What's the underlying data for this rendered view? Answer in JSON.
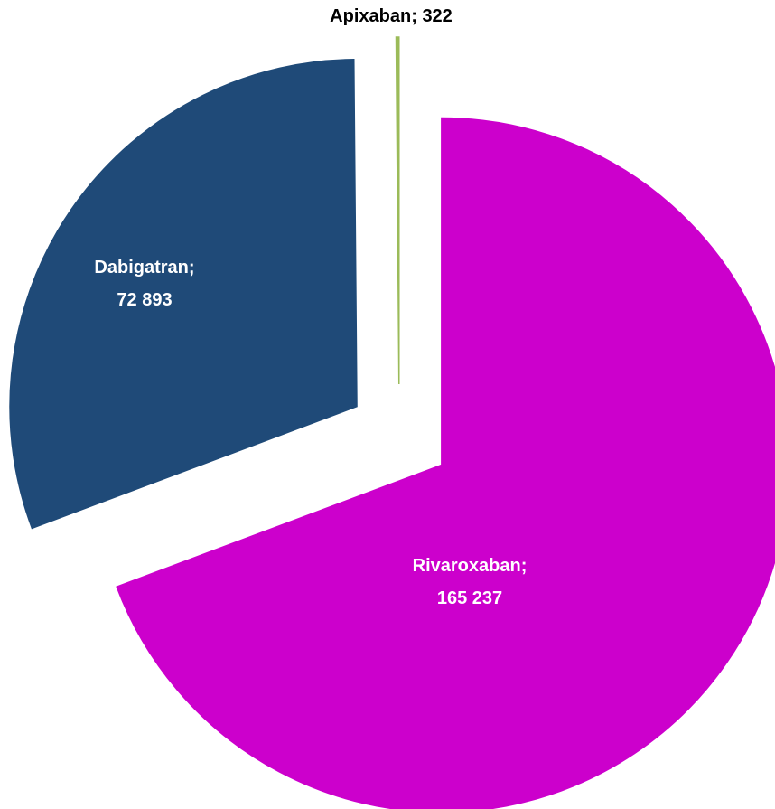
{
  "chart_data": {
    "type": "pie",
    "categories": [
      "Rivaroxaban",
      "Dabigatran",
      "Apixaban"
    ],
    "values": [
      165237,
      72893,
      322
    ],
    "value_labels": [
      "165 237",
      "72 893",
      "322"
    ],
    "label_separator": ";",
    "colors": [
      "#cc00cc",
      "#1f4a78",
      "#9bbb59"
    ],
    "start_angle": 0,
    "direction": "clockwise",
    "exploded": true
  }
}
